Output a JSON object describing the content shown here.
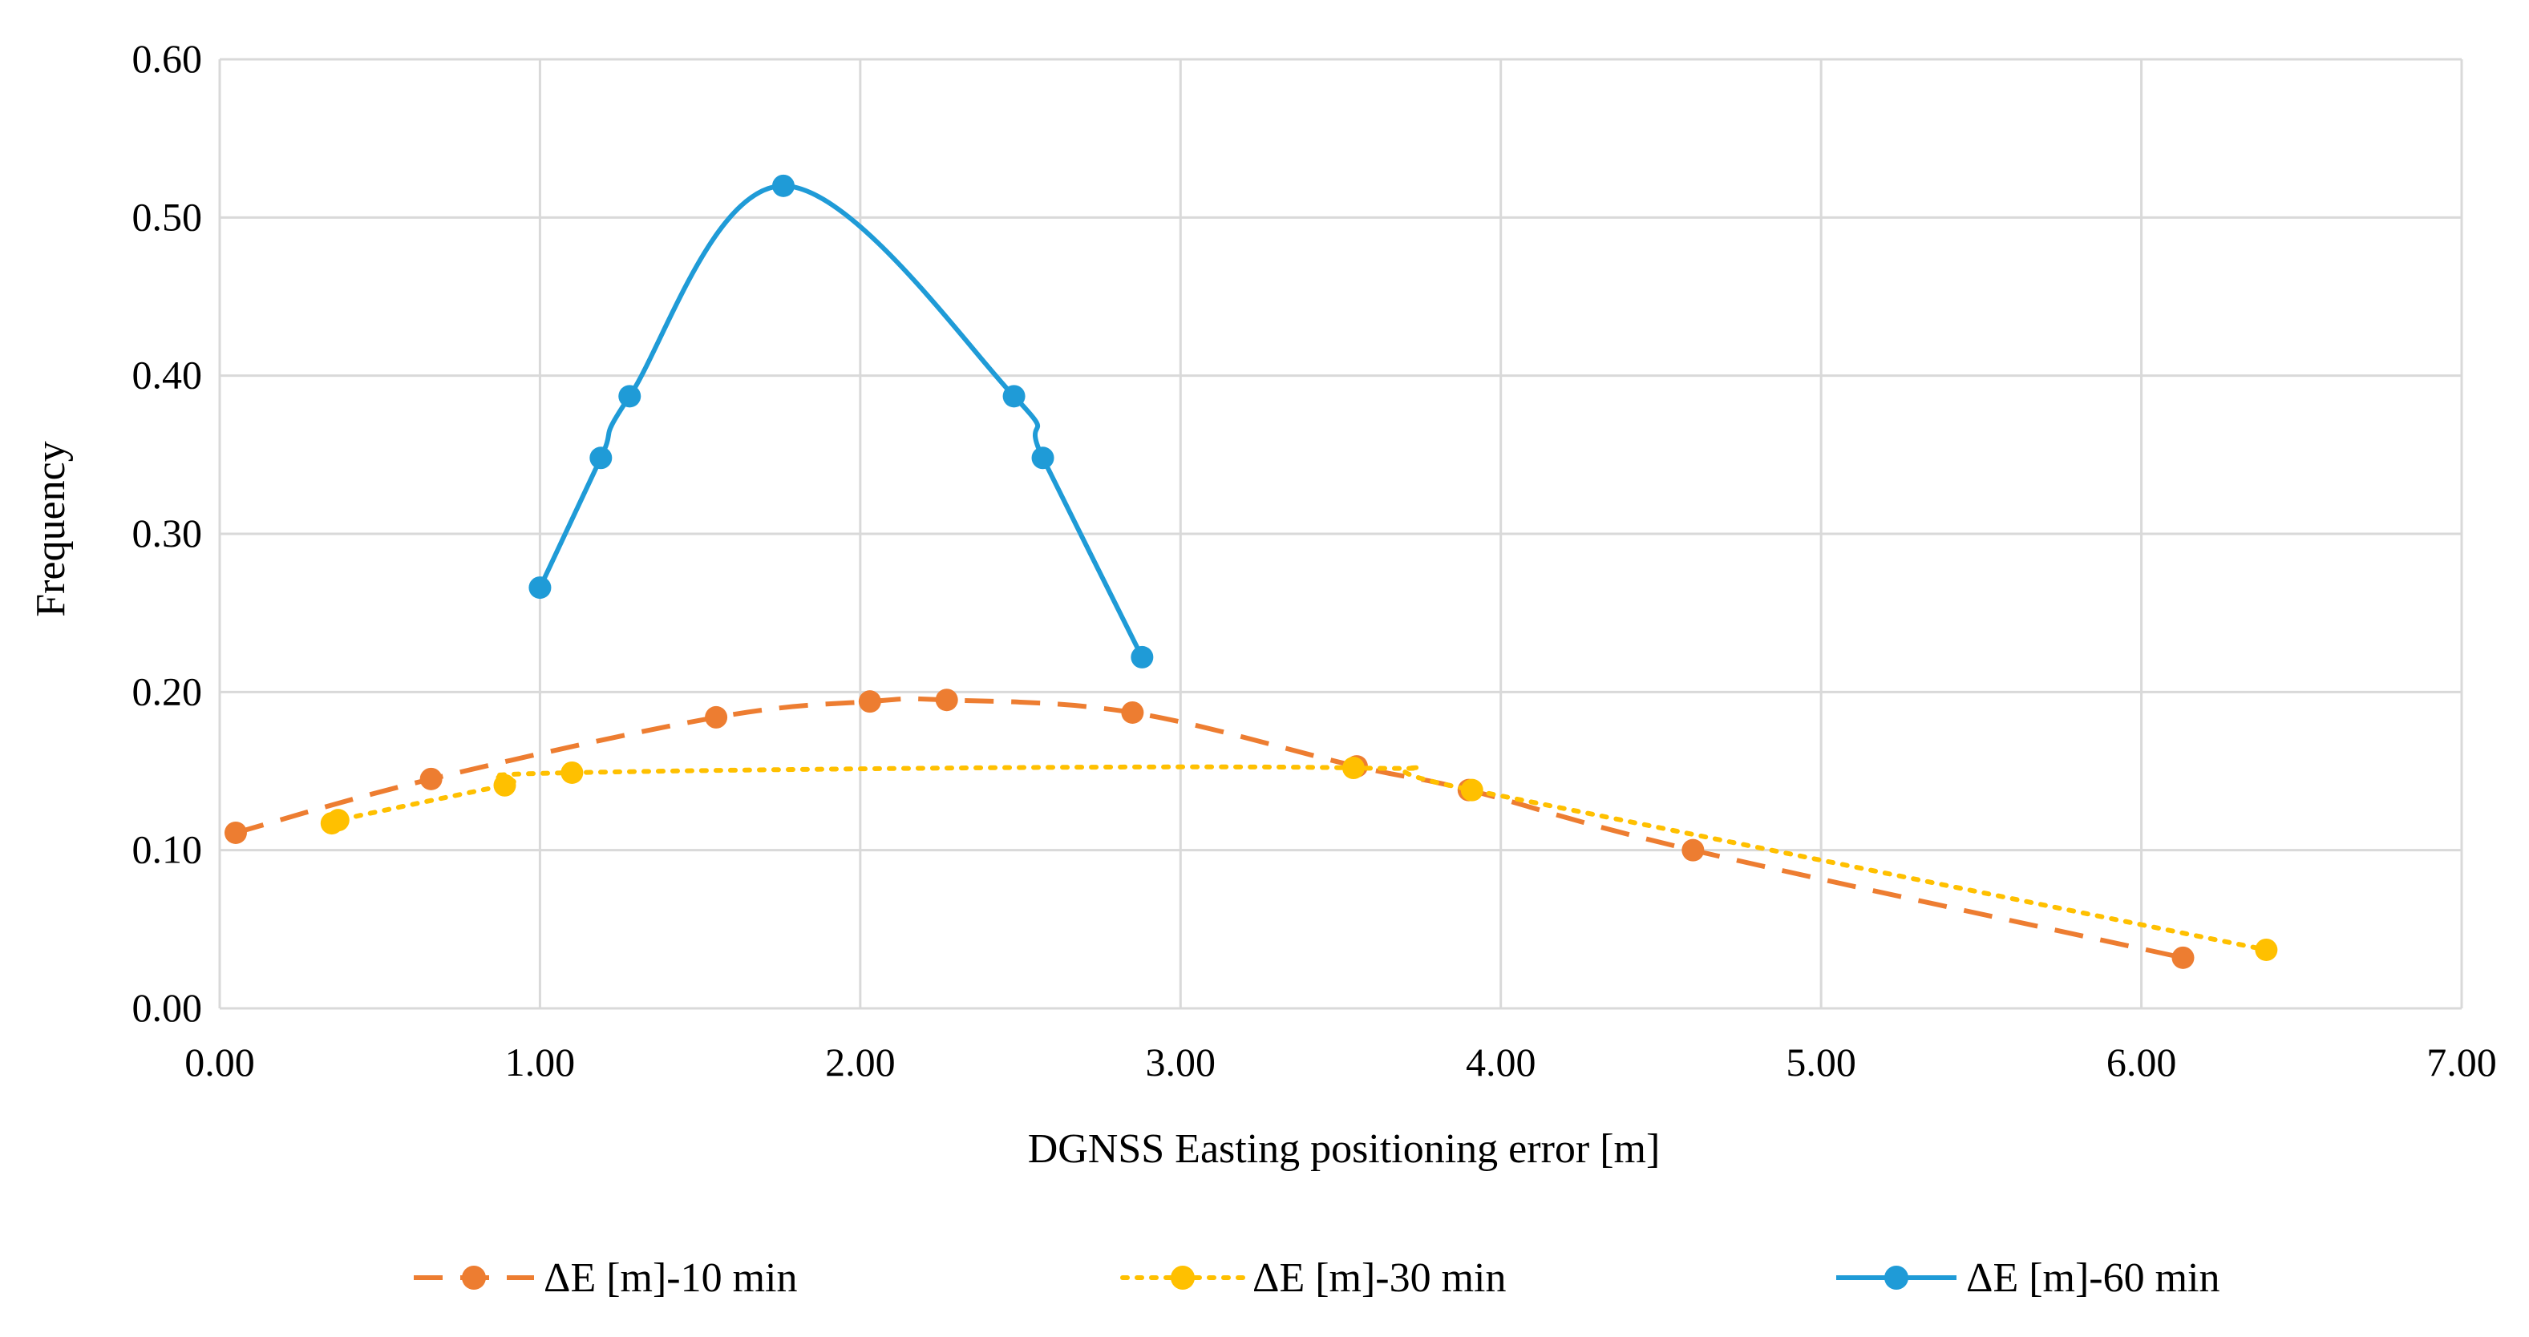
{
  "chart_data": {
    "type": "line",
    "title": "",
    "xlabel": "DGNSS Easting positioning error [m]",
    "ylabel": "Frequency",
    "xlim": [
      0,
      7
    ],
    "ylim": [
      0,
      0.6
    ],
    "x_ticks": [
      "0.00",
      "1.00",
      "2.00",
      "3.00",
      "4.00",
      "5.00",
      "6.00",
      "7.00"
    ],
    "y_ticks": [
      "0.00",
      "0.10",
      "0.20",
      "0.30",
      "0.40",
      "0.50",
      "0.60"
    ],
    "grid": true,
    "legend_position": "bottom",
    "series": [
      {
        "name": "ΔE [m]-10 min",
        "color": "#ED7D31",
        "line_style": "dashed",
        "x": [
          0.05,
          0.66,
          1.55,
          2.03,
          2.27,
          2.85,
          3.55,
          3.9,
          4.6,
          6.13
        ],
        "y": [
          0.111,
          0.145,
          0.184,
          0.194,
          0.195,
          0.187,
          0.153,
          0.138,
          0.1,
          0.032
        ]
      },
      {
        "name": "ΔE [m]-30 min",
        "color": "#FFC000",
        "line_style": "dotted",
        "x": [
          0.35,
          0.37,
          0.89,
          1.1,
          3.54,
          3.91,
          6.39
        ],
        "y": [
          0.117,
          0.119,
          0.141,
          0.149,
          0.152,
          0.138,
          0.037
        ]
      },
      {
        "name": "ΔE [m]-60 min",
        "color": "#1F9BD7",
        "line_style": "solid",
        "x": [
          1.0,
          1.19,
          1.28,
          1.76,
          2.48,
          2.57,
          2.88
        ],
        "y": [
          0.266,
          0.348,
          0.387,
          0.52,
          0.387,
          0.348,
          0.222
        ]
      }
    ]
  }
}
